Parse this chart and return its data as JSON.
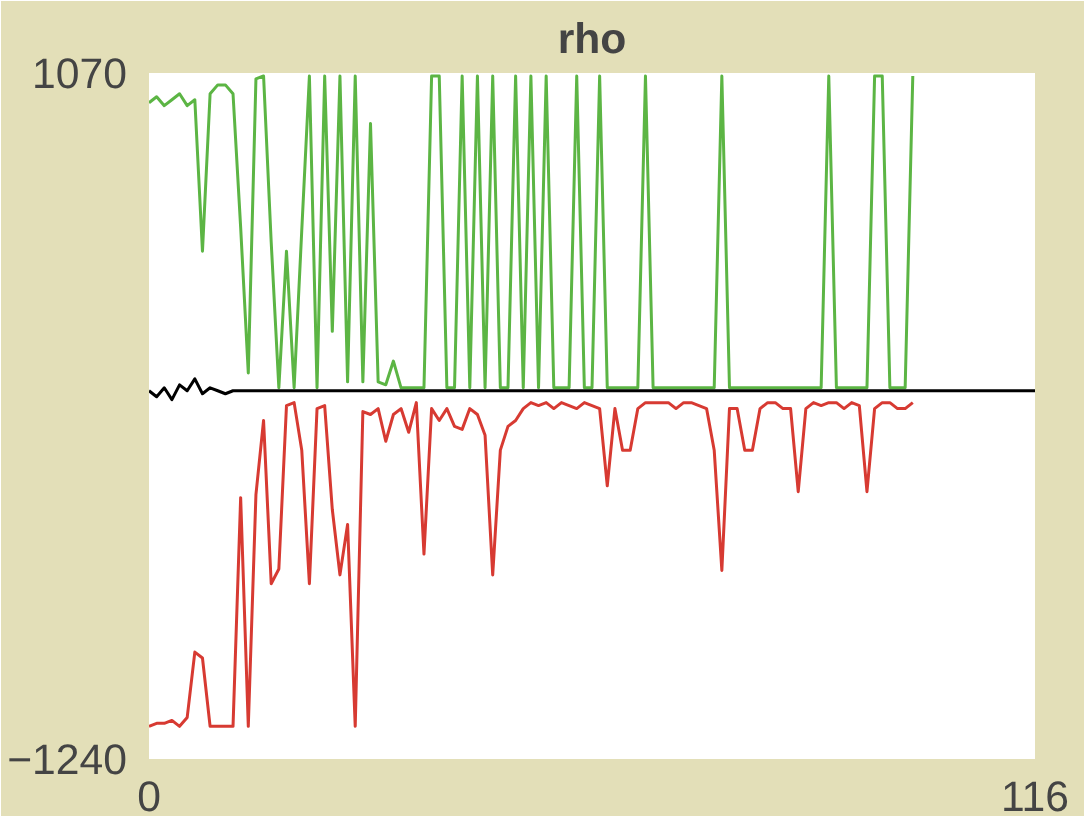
{
  "chart_data": {
    "type": "line",
    "title": "rho",
    "xlim": [
      0,
      116
    ],
    "ylim": [
      -1240,
      1070
    ],
    "xticks": [
      0,
      116
    ],
    "yticks": [
      -1240,
      1070
    ],
    "marker": "none",
    "line_style": "solid",
    "x": [
      0,
      1,
      2,
      3,
      4,
      5,
      6,
      7,
      8,
      9,
      10,
      11,
      12,
      13,
      14,
      15,
      16,
      17,
      18,
      19,
      20,
      21,
      22,
      23,
      24,
      25,
      26,
      27,
      28,
      29,
      30,
      31,
      32,
      33,
      34,
      35,
      36,
      37,
      38,
      39,
      40,
      41,
      42,
      43,
      44,
      45,
      46,
      47,
      48,
      49,
      50,
      51,
      52,
      53,
      54,
      55,
      56,
      57,
      58,
      59,
      60,
      61,
      62,
      63,
      64,
      65,
      66,
      67,
      68,
      69,
      70,
      71,
      72,
      73,
      74,
      75,
      76,
      77,
      78,
      79,
      80,
      81,
      82,
      83,
      84,
      85,
      86,
      87,
      88,
      89,
      90,
      91,
      92,
      93,
      94,
      95,
      96,
      97,
      98,
      99,
      100
    ],
    "series": [
      {
        "color": "#5cb544",
        "values": [
          970,
          990,
          960,
          980,
          1000,
          960,
          980,
          470,
          1000,
          1030,
          1030,
          1000,
          550,
          60,
          1050,
          1060,
          500,
          10,
          470,
          10,
          540,
          1060,
          10,
          1060,
          200,
          1060,
          30,
          1060,
          30,
          900,
          30,
          20,
          100,
          10,
          10,
          10,
          10,
          1060,
          1060,
          10,
          10,
          1060,
          10,
          1060,
          10,
          1060,
          10,
          10,
          1060,
          10,
          1060,
          10,
          1060,
          10,
          10,
          10,
          1060,
          10,
          10,
          1060,
          10,
          10,
          10,
          10,
          10,
          1060,
          10,
          10,
          10,
          10,
          10,
          10,
          10,
          10,
          10,
          1060,
          10,
          10,
          10,
          10,
          10,
          10,
          10,
          10,
          10,
          10,
          10,
          10,
          10,
          1060,
          10,
          10,
          10,
          10,
          10,
          1060,
          1060,
          10,
          10,
          10,
          1060
        ]
      },
      {
        "color": "#d73a32",
        "values": [
          -1130,
          -1120,
          -1120,
          -1110,
          -1130,
          -1100,
          -880,
          -900,
          -1130,
          -1130,
          -1130,
          -1130,
          -360,
          -1130,
          -350,
          -100,
          -650,
          -600,
          -50,
          -40,
          -200,
          -650,
          -60,
          -50,
          -400,
          -620,
          -450,
          -1130,
          -70,
          -80,
          -60,
          -170,
          -80,
          -60,
          -140,
          -40,
          -550,
          -60,
          -100,
          -60,
          -120,
          -130,
          -60,
          -80,
          -150,
          -620,
          -200,
          -120,
          -100,
          -60,
          -40,
          -50,
          -40,
          -60,
          -40,
          -50,
          -60,
          -40,
          -50,
          -60,
          -320,
          -60,
          -200,
          -200,
          -60,
          -40,
          -40,
          -40,
          -40,
          -60,
          -40,
          -40,
          -50,
          -60,
          -200,
          -605,
          -60,
          -60,
          -200,
          -200,
          -60,
          -40,
          -40,
          -60,
          -60,
          -340,
          -60,
          -40,
          -50,
          -40,
          -40,
          -60,
          -40,
          -50,
          -340,
          -60,
          -40,
          -40,
          -60,
          -60,
          -40
        ]
      },
      {
        "color": "#000000",
        "x": [
          0,
          1,
          2,
          3,
          4,
          5,
          6,
          7,
          8,
          9,
          10,
          11,
          116
        ],
        "values": [
          0,
          -20,
          10,
          -30,
          20,
          0,
          40,
          -10,
          10,
          0,
          -10,
          0,
          0
        ]
      }
    ]
  }
}
